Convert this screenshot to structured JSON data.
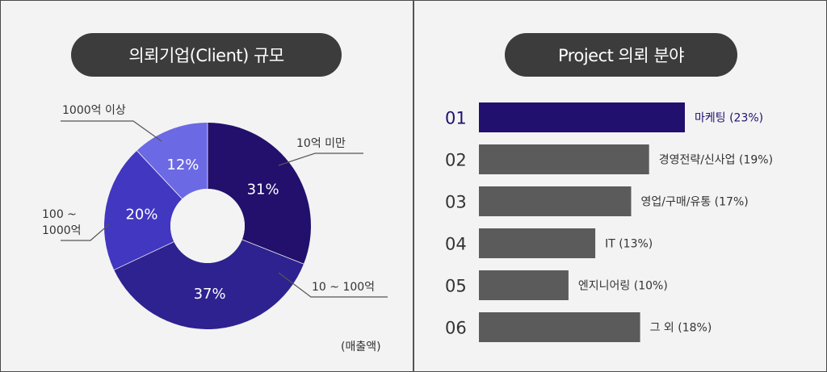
{
  "left_panel": {
    "title": "의뢰기업(Client) 규모",
    "unit_note": "(매출액)"
  },
  "right_panel": {
    "title": "Project 의뢰 분야"
  },
  "colors": {
    "highlight_bar": "#21106e",
    "gray_bar": "#5b5b5b",
    "pill_bg": "#3c3c3c"
  },
  "chart_data": [
    {
      "type": "pie",
      "style": "donut",
      "title": "의뢰기업(Client) 규모",
      "note": "(매출액)",
      "slices": [
        {
          "category": "10억 미만",
          "value": 31,
          "label": "31%",
          "color": "#22106c"
        },
        {
          "category": "10 ~ 100억",
          "value": 37,
          "label": "37%",
          "color": "#2e2290"
        },
        {
          "category": "100 ~ 1000억",
          "value": 20,
          "label": "20%",
          "color": "#4237c0"
        },
        {
          "category": "1000억 이상",
          "value": 12,
          "label": "12%",
          "color": "#6c69e4"
        }
      ]
    },
    {
      "type": "bar",
      "orientation": "horizontal",
      "title": "Project 의뢰 분야",
      "xlim": [
        0,
        23
      ],
      "bars": [
        {
          "rank": "01",
          "label": "마케팅 (23%)",
          "value": 23,
          "highlight": true
        },
        {
          "rank": "02",
          "label": "경영전략/신사업 (19%)",
          "value": 19,
          "highlight": false
        },
        {
          "rank": "03",
          "label": "영업/구매/유통 (17%)",
          "value": 17,
          "highlight": false
        },
        {
          "rank": "04",
          "label": "IT (13%)",
          "value": 13,
          "highlight": false
        },
        {
          "rank": "05",
          "label": "엔지니어링 (10%)",
          "value": 10,
          "highlight": false
        },
        {
          "rank": "06",
          "label": "그 외 (18%)",
          "value": 18,
          "highlight": false
        }
      ]
    }
  ]
}
